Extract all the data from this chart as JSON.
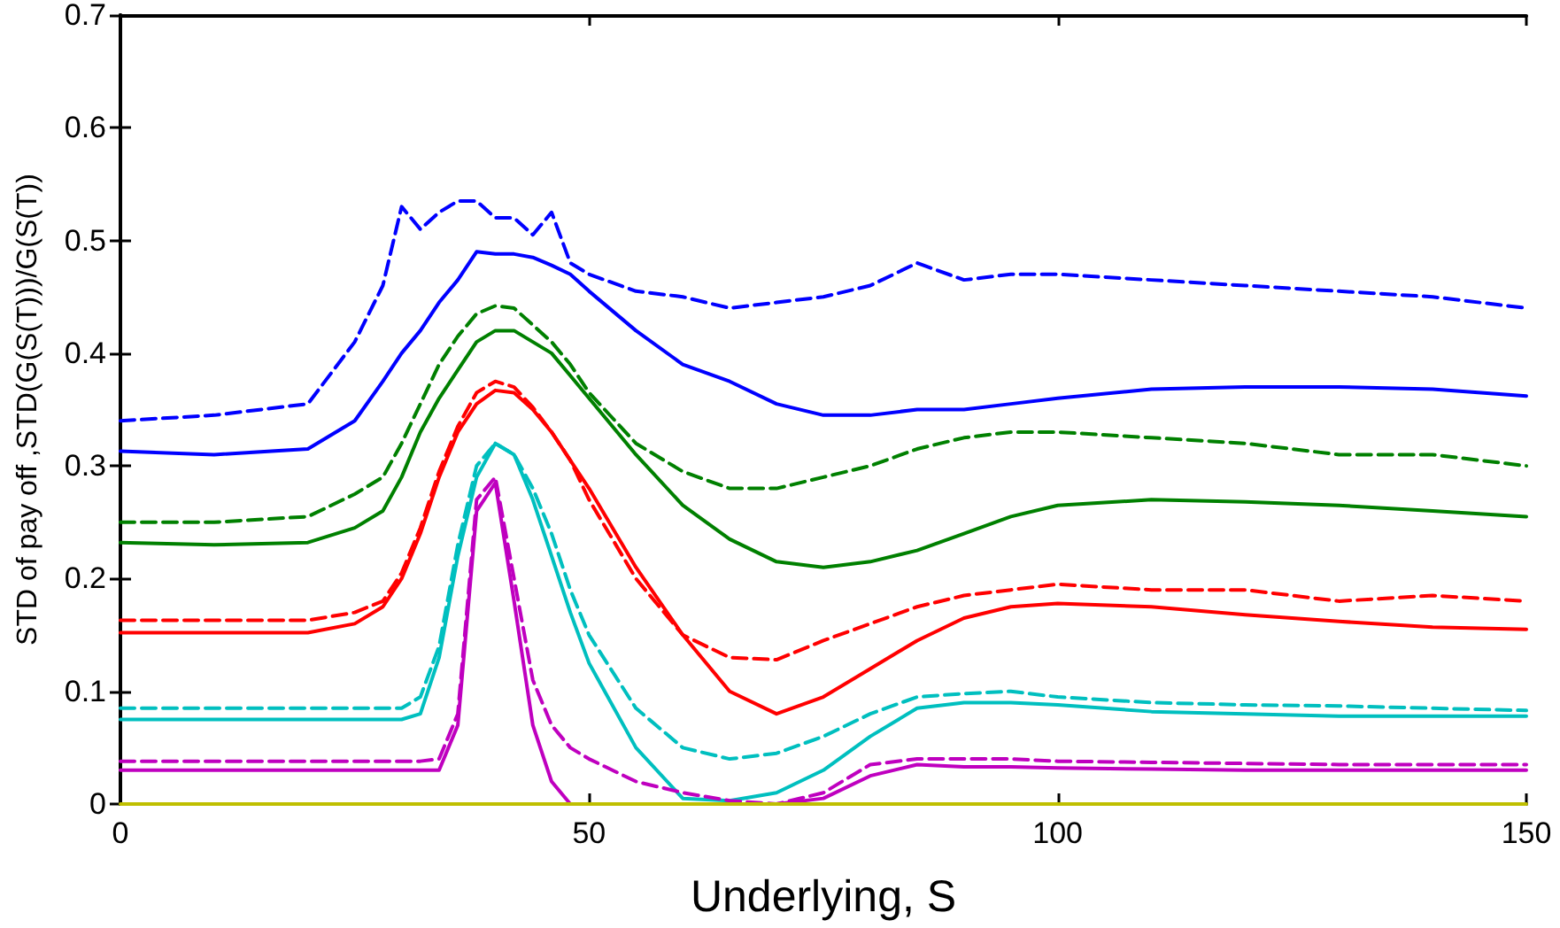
{
  "chart_data": {
    "type": "line",
    "xlabel": "Underlying, S",
    "ylabel": "STD of pay off ,STD(G(S(T)))/G(S(T))",
    "x": [
      0,
      10,
      20,
      25,
      28,
      30,
      32,
      34,
      36,
      38,
      40,
      42,
      44,
      46,
      48,
      50,
      55,
      60,
      65,
      70,
      75,
      80,
      85,
      90,
      95,
      100,
      110,
      120,
      130,
      140,
      150
    ],
    "xlim": [
      0,
      150
    ],
    "xticks": [
      0,
      50,
      100,
      150
    ],
    "ylim": [
      0,
      0.7
    ],
    "yticks": [
      0,
      0.1,
      0.2,
      0.3,
      0.4,
      0.5,
      0.6,
      0.7
    ],
    "series": [
      {
        "color": "#0000ff",
        "line_style": "dashed",
        "values": [
          0.34,
          0.345,
          0.355,
          0.41,
          0.46,
          0.53,
          0.51,
          0.525,
          0.535,
          0.535,
          0.52,
          0.52,
          0.505,
          0.525,
          0.48,
          0.47,
          0.455,
          0.45,
          0.44,
          0.445,
          0.45,
          0.46,
          0.48,
          0.465,
          0.47,
          0.47,
          0.465,
          0.46,
          0.455,
          0.45,
          0.44
        ]
      },
      {
        "color": "#0000ff",
        "line_style": "solid",
        "values": [
          0.313,
          0.31,
          0.315,
          0.34,
          0.375,
          0.4,
          0.42,
          0.445,
          0.465,
          0.49,
          0.488,
          0.488,
          0.485,
          0.478,
          0.47,
          0.455,
          0.42,
          0.39,
          0.375,
          0.355,
          0.345,
          0.345,
          0.35,
          0.35,
          0.355,
          0.36,
          0.368,
          0.37,
          0.37,
          0.368,
          0.362
        ]
      },
      {
        "color": "#008000",
        "line_style": "dashed",
        "values": [
          0.25,
          0.25,
          0.255,
          0.275,
          0.29,
          0.32,
          0.355,
          0.39,
          0.415,
          0.435,
          0.442,
          0.44,
          0.425,
          0.41,
          0.39,
          0.365,
          0.32,
          0.295,
          0.28,
          0.28,
          0.29,
          0.3,
          0.315,
          0.325,
          0.33,
          0.33,
          0.325,
          0.32,
          0.31,
          0.31,
          0.3
        ]
      },
      {
        "color": "#008000",
        "line_style": "solid",
        "values": [
          0.232,
          0.23,
          0.232,
          0.245,
          0.26,
          0.29,
          0.33,
          0.36,
          0.385,
          0.41,
          0.42,
          0.42,
          0.41,
          0.4,
          0.38,
          0.36,
          0.31,
          0.265,
          0.235,
          0.215,
          0.21,
          0.215,
          0.225,
          0.24,
          0.255,
          0.265,
          0.27,
          0.268,
          0.265,
          0.26,
          0.255
        ]
      },
      {
        "color": "#ff0000",
        "line_style": "dashed",
        "values": [
          0.163,
          0.163,
          0.163,
          0.17,
          0.18,
          0.205,
          0.245,
          0.295,
          0.335,
          0.365,
          0.375,
          0.37,
          0.352,
          0.33,
          0.305,
          0.27,
          0.2,
          0.15,
          0.13,
          0.128,
          0.145,
          0.16,
          0.175,
          0.185,
          0.19,
          0.195,
          0.19,
          0.19,
          0.18,
          0.185,
          0.18
        ]
      },
      {
        "color": "#ff0000",
        "line_style": "solid",
        "values": [
          0.152,
          0.152,
          0.152,
          0.16,
          0.175,
          0.2,
          0.24,
          0.29,
          0.33,
          0.355,
          0.367,
          0.365,
          0.35,
          0.33,
          0.305,
          0.28,
          0.21,
          0.15,
          0.1,
          0.08,
          0.095,
          0.12,
          0.145,
          0.165,
          0.175,
          0.178,
          0.175,
          0.168,
          0.162,
          0.157,
          0.155
        ]
      },
      {
        "color": "#00bfbf",
        "line_style": "dashed",
        "values": [
          0.085,
          0.085,
          0.085,
          0.085,
          0.085,
          0.085,
          0.095,
          0.14,
          0.23,
          0.3,
          0.32,
          0.31,
          0.28,
          0.24,
          0.19,
          0.15,
          0.085,
          0.05,
          0.04,
          0.045,
          0.06,
          0.08,
          0.095,
          0.098,
          0.1,
          0.095,
          0.09,
          0.088,
          0.087,
          0.085,
          0.083
        ]
      },
      {
        "color": "#00bfbf",
        "line_style": "solid",
        "values": [
          0.075,
          0.075,
          0.075,
          0.075,
          0.075,
          0.075,
          0.08,
          0.13,
          0.22,
          0.29,
          0.32,
          0.31,
          0.27,
          0.22,
          0.17,
          0.125,
          0.05,
          0.005,
          0.003,
          0.01,
          0.03,
          0.06,
          0.085,
          0.09,
          0.09,
          0.088,
          0.082,
          0.08,
          0.078,
          0.078,
          0.078
        ]
      },
      {
        "color": "#bf00bf",
        "line_style": "dashed",
        "values": [
          0.038,
          0.038,
          0.038,
          0.038,
          0.038,
          0.038,
          0.038,
          0.04,
          0.08,
          0.27,
          0.29,
          0.2,
          0.11,
          0.07,
          0.05,
          0.04,
          0.02,
          0.01,
          0.003,
          0,
          0.01,
          0.035,
          0.04,
          0.04,
          0.04,
          0.038,
          0.037,
          0.036,
          0.035,
          0.035,
          0.035
        ]
      },
      {
        "color": "#bf00bf",
        "line_style": "solid",
        "values": [
          0.03,
          0.03,
          0.03,
          0.03,
          0.03,
          0.03,
          0.03,
          0.03,
          0.07,
          0.26,
          0.285,
          0.18,
          0.07,
          0.02,
          0,
          0,
          0,
          0,
          0,
          0,
          0.005,
          0.025,
          0.035,
          0.033,
          0.033,
          0.032,
          0.031,
          0.03,
          0.03,
          0.03,
          0.03
        ]
      },
      {
        "color": "#bfbf00",
        "line_style": "solid",
        "values": [
          0,
          0,
          0,
          0,
          0,
          0,
          0,
          0,
          0,
          0,
          0,
          0,
          0,
          0,
          0,
          0,
          0,
          0,
          0,
          0,
          0,
          0,
          0,
          0,
          0,
          0,
          0,
          0,
          0,
          0,
          0
        ]
      }
    ]
  }
}
